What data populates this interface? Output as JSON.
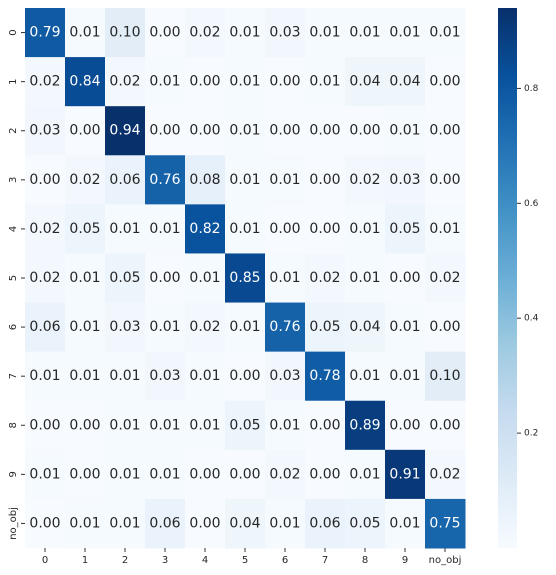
{
  "chart_data": {
    "type": "heatmap",
    "colormap": "Blues",
    "categories": [
      "0",
      "1",
      "2",
      "3",
      "4",
      "5",
      "6",
      "7",
      "8",
      "9",
      "no_obj"
    ],
    "z": [
      [
        0.79,
        0.01,
        0.1,
        0.0,
        0.02,
        0.01,
        0.03,
        0.01,
        0.01,
        0.01,
        0.01
      ],
      [
        0.02,
        0.84,
        0.02,
        0.01,
        0.0,
        0.01,
        0.0,
        0.01,
        0.04,
        0.04,
        0.0
      ],
      [
        0.03,
        0.0,
        0.94,
        0.0,
        0.0,
        0.01,
        0.0,
        0.0,
        0.0,
        0.01,
        0.0
      ],
      [
        0.0,
        0.02,
        0.06,
        0.76,
        0.08,
        0.01,
        0.01,
        0.0,
        0.02,
        0.03,
        0.0
      ],
      [
        0.02,
        0.05,
        0.01,
        0.01,
        0.82,
        0.01,
        0.0,
        0.0,
        0.01,
        0.05,
        0.01
      ],
      [
        0.02,
        0.01,
        0.05,
        0.0,
        0.01,
        0.85,
        0.01,
        0.02,
        0.01,
        0.0,
        0.02
      ],
      [
        0.06,
        0.01,
        0.03,
        0.01,
        0.02,
        0.01,
        0.76,
        0.05,
        0.04,
        0.01,
        0.0
      ],
      [
        0.01,
        0.01,
        0.01,
        0.03,
        0.01,
        0.0,
        0.03,
        0.78,
        0.01,
        0.01,
        0.1
      ],
      [
        0.0,
        0.0,
        0.01,
        0.01,
        0.01,
        0.05,
        0.01,
        0.0,
        0.89,
        0.0,
        0.0
      ],
      [
        0.01,
        0.0,
        0.01,
        0.01,
        0.0,
        0.0,
        0.02,
        0.0,
        0.01,
        0.91,
        0.02
      ],
      [
        0.0,
        0.01,
        0.01,
        0.06,
        0.0,
        0.04,
        0.01,
        0.06,
        0.05,
        0.01,
        0.75
      ]
    ],
    "value_labels": [
      [
        "0.79",
        "0.01",
        "0.10",
        "0.00",
        "0.02",
        "0.01",
        "0.03",
        "0.01",
        "0.01",
        "0.01",
        "0.01"
      ],
      [
        "0.02",
        "0.84",
        "0.02",
        "0.01",
        "0.00",
        "0.01",
        "0.00",
        "0.01",
        "0.04",
        "0.04",
        "0.00"
      ],
      [
        "0.03",
        "0.00",
        "0.94",
        "0.00",
        "0.00",
        "0.01",
        "0.00",
        "0.00",
        "0.00",
        "0.01",
        "0.00"
      ],
      [
        "0.00",
        "0.02",
        "0.06",
        "0.76",
        "0.08",
        "0.01",
        "0.01",
        "0.00",
        "0.02",
        "0.03",
        "0.00"
      ],
      [
        "0.02",
        "0.05",
        "0.01",
        "0.01",
        "0.82",
        "0.01",
        "0.00",
        "0.00",
        "0.01",
        "0.05",
        "0.01"
      ],
      [
        "0.02",
        "0.01",
        "0.05",
        "0.00",
        "0.01",
        "0.85",
        "0.01",
        "0.02",
        "0.01",
        "0.00",
        "0.02"
      ],
      [
        "0.06",
        "0.01",
        "0.03",
        "0.01",
        "0.02",
        "0.01",
        "0.76",
        "0.05",
        "0.04",
        "0.01",
        "0.00"
      ],
      [
        "0.01",
        "0.01",
        "0.01",
        "0.03",
        "0.01",
        "0.00",
        "0.03",
        "0.78",
        "0.01",
        "0.01",
        "0.10"
      ],
      [
        "0.00",
        "0.00",
        "0.01",
        "0.01",
        "0.01",
        "0.05",
        "0.01",
        "0.00",
        "0.89",
        "0.00",
        "0.00"
      ],
      [
        "0.01",
        "0.00",
        "0.01",
        "0.01",
        "0.00",
        "0.00",
        "0.02",
        "0.00",
        "0.01",
        "0.91",
        "0.02"
      ],
      [
        "0.00",
        "0.01",
        "0.01",
        "0.06",
        "0.00",
        "0.04",
        "0.01",
        "0.06",
        "0.05",
        "0.01",
        "0.75"
      ]
    ],
    "zlim": [
      0,
      0.94
    ],
    "colorbar_ticks": [
      0.2,
      0.4,
      0.6,
      0.8
    ]
  }
}
